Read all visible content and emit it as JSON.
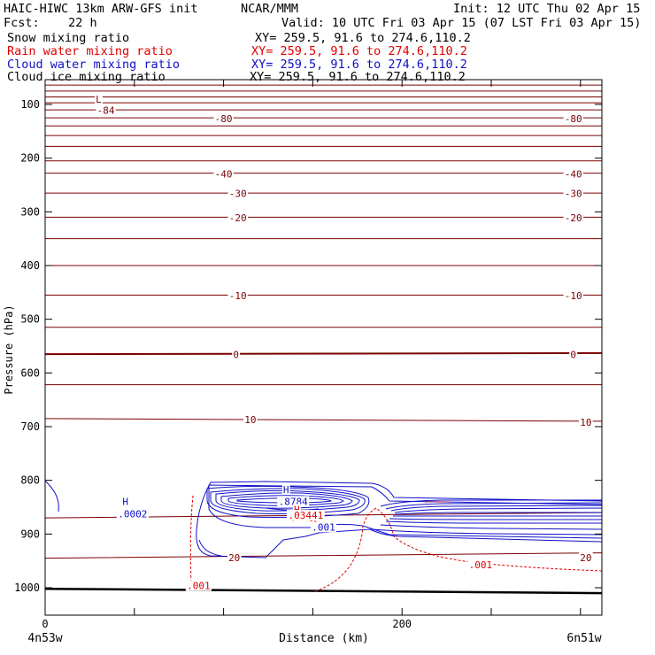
{
  "header": {
    "model": "HAIC-HIWC 13km ARW-GFS init",
    "org": "NCAR/MMM",
    "init": "Init: 12 UTC Thu 02 Apr 15",
    "fcst": "Fcst:    22 h",
    "valid": "Valid: 10 UTC Fri 03 Apr 15 (07 LST Fri 03 Apr 15)"
  },
  "fields": [
    {
      "name": "Snow mixing ratio",
      "xy": "XY= 259.5, 91.6 to 274.6,110.2",
      "color": "#000000"
    },
    {
      "name": "Rain water mixing ratio",
      "xy": "XY= 259.5, 91.6 to 274.6,110.2",
      "color": "#e00000"
    },
    {
      "name": "Cloud water mixing ratio",
      "xy": "XY= 259.5, 91.6 to 274.6,110.2",
      "color": "#1010c8"
    },
    {
      "name": "Cloud ice mixing ratio",
      "xy": "XY= 259.5, 91.6 to 274.6,110.2",
      "color": "#000000"
    }
  ],
  "chart_data": {
    "type": "line",
    "description_note": "",
    "xlabel": "Distance (km)",
    "ylabel": "Pressure (hPa)",
    "xlim": [
      0,
      312
    ],
    "ylim": [
      1050,
      60
    ],
    "x_ticks": [
      0,
      50,
      100,
      150,
      200,
      250,
      300
    ],
    "x_tick_labels": [
      {
        "x": 0,
        "label": "0"
      },
      {
        "x": 200,
        "label": "200"
      }
    ],
    "y_ticks": [
      100,
      200,
      300,
      400,
      500,
      600,
      700,
      800,
      900,
      1000
    ],
    "y_tick_labels": [
      "100",
      "200",
      "300",
      "400",
      "500",
      "600",
      "700",
      "800",
      "900",
      "1000"
    ],
    "endpoint_left": "4n53w",
    "endpoint_right": "6n51w",
    "temperature_isotherms": {
      "color": "#7a0000",
      "x": [
        0,
        312
      ],
      "lines": [
        {
          "p": [
            64,
            64
          ]
        },
        {
          "p": [
            75,
            75
          ]
        },
        {
          "p": [
            86,
            86
          ]
        },
        {
          "p": [
            97,
            97
          ]
        },
        {
          "p": [
            110,
            110
          ],
          "label": "-84"
        },
        {
          "p": [
            125,
            125
          ],
          "label": "-80"
        },
        {
          "p": [
            140,
            140
          ]
        },
        {
          "p": [
            158,
            158
          ]
        },
        {
          "p": [
            178,
            178
          ]
        },
        {
          "p": [
            205,
            205
          ]
        },
        {
          "p": [
            228,
            228
          ],
          "label": "-40"
        },
        {
          "p": [
            265,
            265
          ],
          "label": "-30"
        },
        {
          "p": [
            310,
            310
          ],
          "label": "-20"
        },
        {
          "p": [
            350,
            350
          ]
        },
        {
          "p": [
            400,
            400
          ]
        },
        {
          "p": [
            455,
            455
          ],
          "label": "-10"
        },
        {
          "p": [
            515,
            515
          ]
        },
        {
          "p": [
            565,
            563
          ],
          "label": "0",
          "bold": true
        },
        {
          "p": [
            622,
            622
          ]
        },
        {
          "p": [
            685,
            690
          ],
          "label": "10"
        },
        {
          "p": [
            870,
            860
          ]
        },
        {
          "p": [
            945,
            935
          ],
          "label": "20"
        },
        {
          "p": [
            1002,
            1010
          ],
          "ground": true
        }
      ]
    },
    "labels": [
      {
        "text": "L",
        "x": 30,
        "p": 90,
        "color": "#7a0000"
      },
      {
        "text": "-84",
        "x": 34,
        "p": 111,
        "color": "#7a0000"
      },
      {
        "text": "-80",
        "x": 100,
        "p": 126,
        "color": "#7a0000"
      },
      {
        "text": "-80",
        "x": 296,
        "p": 126,
        "color": "#7a0000"
      },
      {
        "text": "-40",
        "x": 100,
        "p": 229,
        "color": "#7a0000"
      },
      {
        "text": "-40",
        "x": 296,
        "p": 229,
        "color": "#7a0000"
      },
      {
        "text": "-30",
        "x": 108,
        "p": 266,
        "color": "#7a0000"
      },
      {
        "text": "-30",
        "x": 296,
        "p": 266,
        "color": "#7a0000"
      },
      {
        "text": "-20",
        "x": 108,
        "p": 311,
        "color": "#7a0000"
      },
      {
        "text": "-20",
        "x": 296,
        "p": 311,
        "color": "#7a0000"
      },
      {
        "text": "-10",
        "x": 108,
        "p": 456,
        "color": "#7a0000"
      },
      {
        "text": "-10",
        "x": 296,
        "p": 456,
        "color": "#7a0000"
      },
      {
        "text": "0",
        "x": 107,
        "p": 566,
        "color": "#7a0000"
      },
      {
        "text": "0",
        "x": 296,
        "p": 566,
        "color": "#7a0000"
      },
      {
        "text": "10",
        "x": 115,
        "p": 687,
        "color": "#7a0000"
      },
      {
        "text": "10",
        "x": 303,
        "p": 692,
        "color": "#7a0000"
      },
      {
        "text": "20",
        "x": 106,
        "p": 944,
        "color": "#7a0000"
      },
      {
        "text": "20",
        "x": 303,
        "p": 944,
        "color": "#7a0000"
      },
      {
        "text": "H",
        "x": 45,
        "p": 839,
        "color": "#1010c8"
      },
      {
        "text": ".0002",
        "x": 49,
        "p": 862,
        "color": "#1010c8"
      },
      {
        "text": "H",
        "x": 135,
        "p": 817,
        "color": "#1010c8"
      },
      {
        "text": ".8784",
        "x": 139,
        "p": 839,
        "color": "#1010c8"
      },
      {
        "text": "H",
        "x": 141,
        "p": 854,
        "color": "#e00000"
      },
      {
        "text": ".03441",
        "x": 146,
        "p": 865,
        "color": "#e00000"
      },
      {
        "text": ".001",
        "x": 156,
        "p": 887,
        "color": "#1010c8"
      },
      {
        "text": ".001",
        "x": 244,
        "p": 957,
        "color": "#e00000"
      },
      {
        "text": ".001",
        "x": 86,
        "p": 996,
        "color": "#e00000"
      }
    ]
  }
}
